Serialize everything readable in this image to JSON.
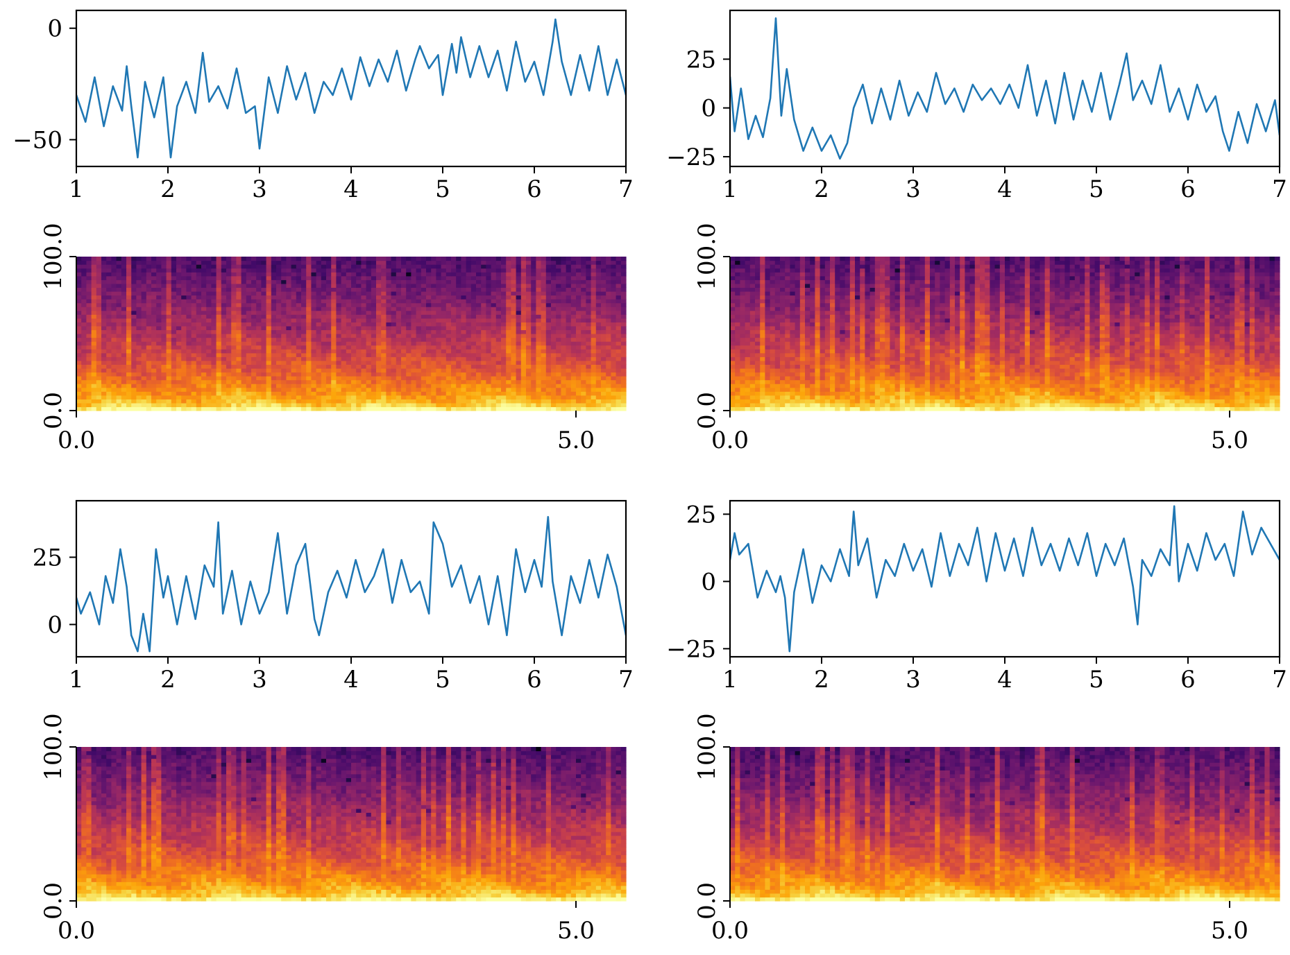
{
  "colors": {
    "line": "#1f77b4",
    "axes": "#000000",
    "colormap": "inferno"
  },
  "chart_data": [
    {
      "id": "wave-1",
      "type": "line",
      "xlim": [
        1,
        7
      ],
      "ylim": [
        -62,
        8
      ],
      "xticks": [
        1,
        2,
        3,
        4,
        5,
        6,
        7
      ],
      "xtick_labels": [
        "1",
        "2",
        "3",
        "4",
        "5",
        "6",
        "7"
      ],
      "yticks": [
        -50,
        0
      ],
      "ytick_labels": [
        "−50",
        "0"
      ],
      "series": [
        {
          "x": [
            1.0,
            1.1,
            1.2,
            1.3,
            1.4,
            1.5,
            1.55,
            1.6,
            1.67,
            1.75,
            1.85,
            1.95,
            2.03,
            2.1,
            2.2,
            2.3,
            2.38,
            2.45,
            2.55,
            2.65,
            2.75,
            2.85,
            2.95,
            3.0,
            3.1,
            3.2,
            3.3,
            3.4,
            3.5,
            3.6,
            3.7,
            3.8,
            3.9,
            4.0,
            4.1,
            4.2,
            4.3,
            4.4,
            4.5,
            4.6,
            4.7,
            4.75,
            4.85,
            4.95,
            5.0,
            5.1,
            5.15,
            5.2,
            5.3,
            5.4,
            5.5,
            5.6,
            5.7,
            5.8,
            5.9,
            6.0,
            6.1,
            6.2,
            6.23,
            6.3,
            6.4,
            6.5,
            6.6,
            6.7,
            6.8,
            6.9,
            7.0
          ],
          "y": [
            -30,
            -42,
            -22,
            -44,
            -26,
            -37,
            -17,
            -35,
            -58,
            -24,
            -40,
            -22,
            -58,
            -35,
            -24,
            -38,
            -11,
            -33,
            -26,
            -36,
            -18,
            -38,
            -35,
            -54,
            -22,
            -38,
            -17,
            -32,
            -20,
            -38,
            -24,
            -30,
            -18,
            -32,
            -13,
            -26,
            -14,
            -24,
            -10,
            -28,
            -14,
            -8,
            -18,
            -12,
            -30,
            -7,
            -20,
            -4,
            -22,
            -8,
            -22,
            -10,
            -28,
            -6,
            -24,
            -15,
            -30,
            -6,
            4,
            -15,
            -30,
            -12,
            -28,
            -8,
            -30,
            -14,
            -30
          ]
        }
      ]
    },
    {
      "id": "wave-2",
      "type": "line",
      "xlim": [
        1,
        7
      ],
      "ylim": [
        -30,
        50
      ],
      "xticks": [
        1,
        2,
        3,
        4,
        5,
        6,
        7
      ],
      "xtick_labels": [
        "1",
        "2",
        "3",
        "4",
        "5",
        "6",
        "7"
      ],
      "yticks": [
        -25,
        0,
        25
      ],
      "ytick_labels": [
        "−25",
        "0",
        "25"
      ],
      "series": [
        {
          "x": [
            1.0,
            1.05,
            1.12,
            1.2,
            1.28,
            1.36,
            1.44,
            1.5,
            1.56,
            1.62,
            1.7,
            1.8,
            1.9,
            2.0,
            2.1,
            2.2,
            2.28,
            2.35,
            2.45,
            2.55,
            2.65,
            2.75,
            2.85,
            2.95,
            3.05,
            3.15,
            3.25,
            3.35,
            3.45,
            3.55,
            3.65,
            3.75,
            3.85,
            3.95,
            4.05,
            4.15,
            4.25,
            4.35,
            4.45,
            4.55,
            4.65,
            4.75,
            4.85,
            4.95,
            5.05,
            5.15,
            5.25,
            5.33,
            5.4,
            5.5,
            5.6,
            5.7,
            5.8,
            5.9,
            6.0,
            6.1,
            6.2,
            6.3,
            6.38,
            6.45,
            6.55,
            6.65,
            6.75,
            6.85,
            6.95,
            7.0
          ],
          "y": [
            16,
            -12,
            10,
            -16,
            -4,
            -15,
            5,
            46,
            -4,
            20,
            -6,
            -22,
            -10,
            -22,
            -14,
            -26,
            -18,
            0,
            12,
            -8,
            10,
            -6,
            14,
            -4,
            8,
            -2,
            18,
            2,
            10,
            -2,
            12,
            4,
            10,
            2,
            12,
            0,
            22,
            -4,
            14,
            -8,
            18,
            -6,
            14,
            -2,
            18,
            -6,
            12,
            28,
            4,
            14,
            2,
            22,
            -2,
            10,
            -6,
            12,
            -2,
            6,
            -12,
            -22,
            -2,
            -18,
            2,
            -12,
            4,
            -14
          ]
        }
      ]
    },
    {
      "id": "spec-1",
      "type": "heatmap",
      "xlim": [
        0,
        5.5
      ],
      "ylim": [
        0,
        100
      ],
      "xticks": [
        0,
        5
      ],
      "xtick_labels": [
        "0.0",
        "5.0"
      ],
      "yticks": [
        0,
        100
      ],
      "ytick_labels": [
        "0.0",
        "100.0"
      ],
      "seed": 11
    },
    {
      "id": "spec-2",
      "type": "heatmap",
      "xlim": [
        0,
        5.5
      ],
      "ylim": [
        0,
        100
      ],
      "xticks": [
        0,
        5
      ],
      "xtick_labels": [
        "0.0",
        "5.0"
      ],
      "yticks": [
        0,
        100
      ],
      "ytick_labels": [
        "0.0",
        "100.0"
      ],
      "seed": 23
    },
    {
      "id": "wave-3",
      "type": "line",
      "xlim": [
        1,
        7
      ],
      "ylim": [
        -12,
        46
      ],
      "xticks": [
        1,
        2,
        3,
        4,
        5,
        6,
        7
      ],
      "xtick_labels": [
        "1",
        "2",
        "3",
        "4",
        "5",
        "6",
        "7"
      ],
      "yticks": [
        0,
        25
      ],
      "ytick_labels": [
        "0",
        "25"
      ],
      "series": [
        {
          "x": [
            1.0,
            1.05,
            1.15,
            1.25,
            1.32,
            1.4,
            1.48,
            1.55,
            1.6,
            1.67,
            1.73,
            1.8,
            1.87,
            1.95,
            2.0,
            2.1,
            2.2,
            2.3,
            2.4,
            2.5,
            2.55,
            2.6,
            2.7,
            2.8,
            2.9,
            3.0,
            3.1,
            3.2,
            3.3,
            3.4,
            3.5,
            3.6,
            3.65,
            3.75,
            3.85,
            3.95,
            4.05,
            4.15,
            4.25,
            4.35,
            4.45,
            4.55,
            4.65,
            4.75,
            4.85,
            4.9,
            5.0,
            5.1,
            5.2,
            5.3,
            5.4,
            5.5,
            5.6,
            5.7,
            5.8,
            5.9,
            6.0,
            6.08,
            6.15,
            6.2,
            6.3,
            6.4,
            6.5,
            6.6,
            6.7,
            6.8,
            6.9,
            7.0
          ],
          "y": [
            10,
            4,
            12,
            0,
            18,
            8,
            28,
            14,
            -4,
            -10,
            4,
            -10,
            28,
            10,
            18,
            0,
            18,
            2,
            22,
            14,
            38,
            4,
            20,
            0,
            16,
            4,
            12,
            34,
            4,
            22,
            30,
            2,
            -4,
            12,
            20,
            10,
            24,
            12,
            18,
            28,
            8,
            24,
            12,
            16,
            4,
            38,
            30,
            14,
            22,
            8,
            18,
            0,
            18,
            -4,
            28,
            12,
            24,
            14,
            40,
            16,
            -4,
            18,
            8,
            24,
            10,
            26,
            14,
            -4
          ]
        }
      ]
    },
    {
      "id": "wave-4",
      "type": "line",
      "xlim": [
        1,
        7
      ],
      "ylim": [
        -28,
        30
      ],
      "xticks": [
        1,
        2,
        3,
        4,
        5,
        6,
        7
      ],
      "xtick_labels": [
        "1",
        "2",
        "3",
        "4",
        "5",
        "6",
        "7"
      ],
      "yticks": [
        -25,
        0,
        25
      ],
      "ytick_labels": [
        "−25",
        "0",
        "25"
      ],
      "series": [
        {
          "x": [
            1.0,
            1.05,
            1.1,
            1.2,
            1.3,
            1.4,
            1.5,
            1.55,
            1.6,
            1.65,
            1.7,
            1.8,
            1.9,
            2.0,
            2.1,
            2.2,
            2.3,
            2.35,
            2.4,
            2.5,
            2.6,
            2.7,
            2.8,
            2.9,
            3.0,
            3.1,
            3.2,
            3.3,
            3.4,
            3.5,
            3.6,
            3.7,
            3.8,
            3.9,
            4.0,
            4.1,
            4.2,
            4.3,
            4.4,
            4.5,
            4.6,
            4.7,
            4.8,
            4.9,
            5.0,
            5.1,
            5.2,
            5.3,
            5.4,
            5.45,
            5.5,
            5.6,
            5.7,
            5.8,
            5.85,
            5.9,
            6.0,
            6.1,
            6.2,
            6.3,
            6.4,
            6.5,
            6.6,
            6.7,
            6.8,
            6.9,
            7.0
          ],
          "y": [
            8,
            18,
            10,
            14,
            -6,
            4,
            -4,
            2,
            -6,
            -26,
            -4,
            12,
            -8,
            6,
            0,
            12,
            2,
            26,
            6,
            16,
            -6,
            8,
            2,
            14,
            4,
            12,
            -2,
            18,
            2,
            14,
            6,
            20,
            0,
            18,
            4,
            16,
            2,
            20,
            6,
            14,
            4,
            16,
            6,
            18,
            2,
            14,
            6,
            16,
            -2,
            -16,
            8,
            2,
            12,
            6,
            28,
            0,
            14,
            4,
            18,
            8,
            14,
            2,
            26,
            10,
            20,
            14,
            8
          ]
        }
      ]
    },
    {
      "id": "spec-3",
      "type": "heatmap",
      "xlim": [
        0,
        5.5
      ],
      "ylim": [
        0,
        100
      ],
      "xticks": [
        0,
        5
      ],
      "xtick_labels": [
        "0.0",
        "5.0"
      ],
      "yticks": [
        0,
        100
      ],
      "ytick_labels": [
        "0.0",
        "100.0"
      ],
      "seed": 37
    },
    {
      "id": "spec-4",
      "type": "heatmap",
      "xlim": [
        0,
        5.5
      ],
      "ylim": [
        0,
        100
      ],
      "xticks": [
        0,
        5
      ],
      "xtick_labels": [
        "0.0",
        "5.0"
      ],
      "yticks": [
        0,
        100
      ],
      "ytick_labels": [
        "0.0",
        "100.0"
      ],
      "seed": 53
    }
  ]
}
